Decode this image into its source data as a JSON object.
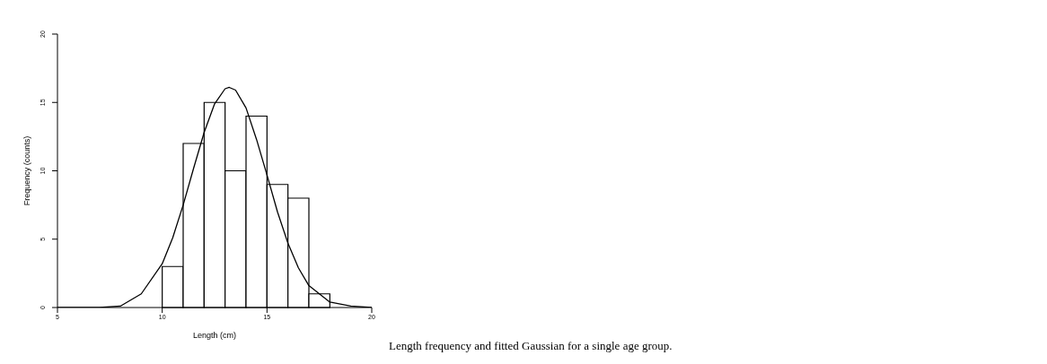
{
  "chart_data": {
    "type": "histogram",
    "xlabel": "Length (cm)",
    "ylabel": "Frequency (counts)",
    "bins": [
      10,
      11,
      12,
      13,
      14,
      15,
      16,
      17,
      18
    ],
    "values": [
      3,
      12,
      15,
      10,
      14,
      9,
      8,
      1
    ],
    "color": "#000000",
    "series": [
      {
        "type": "line",
        "color": "#000000",
        "x": [
          5,
          6,
          7,
          8,
          9,
          10,
          10.5,
          11,
          11.5,
          12,
          12.5,
          13,
          13.2,
          13.5,
          14,
          14.5,
          15,
          15.5,
          16,
          16.5,
          17,
          18,
          19,
          20
        ],
        "values": [
          0,
          0,
          0,
          0.1,
          1,
          3.2,
          5.1,
          7.5,
          10.2,
          12.8,
          14.9,
          16,
          16.1,
          15.9,
          14.6,
          12.3,
          9.7,
          7,
          4.7,
          2.9,
          1.6,
          0.4,
          0.1,
          0
        ]
      }
    ],
    "xlim": [
      5,
      20
    ],
    "xticks": [
      5,
      10,
      15,
      20
    ],
    "ylim": [
      0,
      20
    ],
    "yticks": [
      0,
      5,
      10,
      15,
      20
    ],
    "annotations": [
      "Length frequency and fitted Gaussian for a single age group."
    ]
  }
}
